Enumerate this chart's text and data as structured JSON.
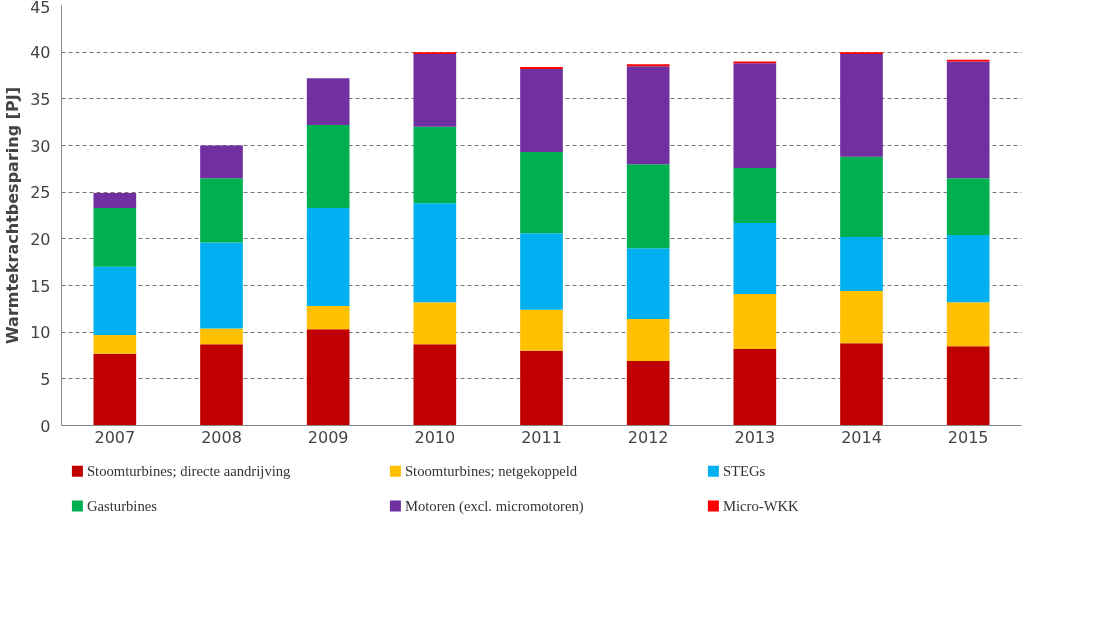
{
  "chart_data": {
    "type": "bar",
    "stacked": true,
    "ylabel": "Warmtekrachtbesparing [PJ]",
    "categories": [
      "2007",
      "2008",
      "2009",
      "2010",
      "2011",
      "2012",
      "2013",
      "2014",
      "2015"
    ],
    "series": [
      {
        "name": "Stoomturbines; directe aandrijving",
        "color": "#c00000",
        "values": [
          7.7,
          8.7,
          10.3,
          8.7,
          8.0,
          6.9,
          8.2,
          8.8,
          8.5
        ]
      },
      {
        "name": "Stoomturbines; netgekoppeld",
        "color": "#ffc000",
        "values": [
          2.0,
          1.7,
          2.5,
          4.5,
          4.4,
          4.5,
          5.9,
          5.6,
          4.7
        ]
      },
      {
        "name": "STEGs",
        "color": "#00b0f0",
        "values": [
          7.3,
          9.2,
          10.5,
          10.6,
          8.2,
          7.6,
          7.6,
          5.8,
          7.2
        ]
      },
      {
        "name": "Gasturbines",
        "color": "#00b050",
        "values": [
          6.3,
          6.9,
          8.9,
          8.2,
          8.7,
          9.0,
          5.9,
          8.6,
          6.1
        ]
      },
      {
        "name": "Motoren (excl. micromotoren)",
        "color": "#7030a0",
        "values": [
          1.6,
          3.5,
          5.0,
          7.8,
          8.9,
          10.5,
          11.2,
          11.0,
          12.5
        ]
      },
      {
        "name": "Micro-WKK",
        "color": "#ff0000",
        "values": [
          0,
          0,
          0,
          0.2,
          0.2,
          0.2,
          0.2,
          0.2,
          0.2
        ]
      }
    ],
    "ylim": [
      0,
      45
    ],
    "yticks": [
      0,
      5,
      10,
      15,
      20,
      25,
      30,
      35,
      40,
      45
    ],
    "grid": "y",
    "legend": "bottom"
  }
}
